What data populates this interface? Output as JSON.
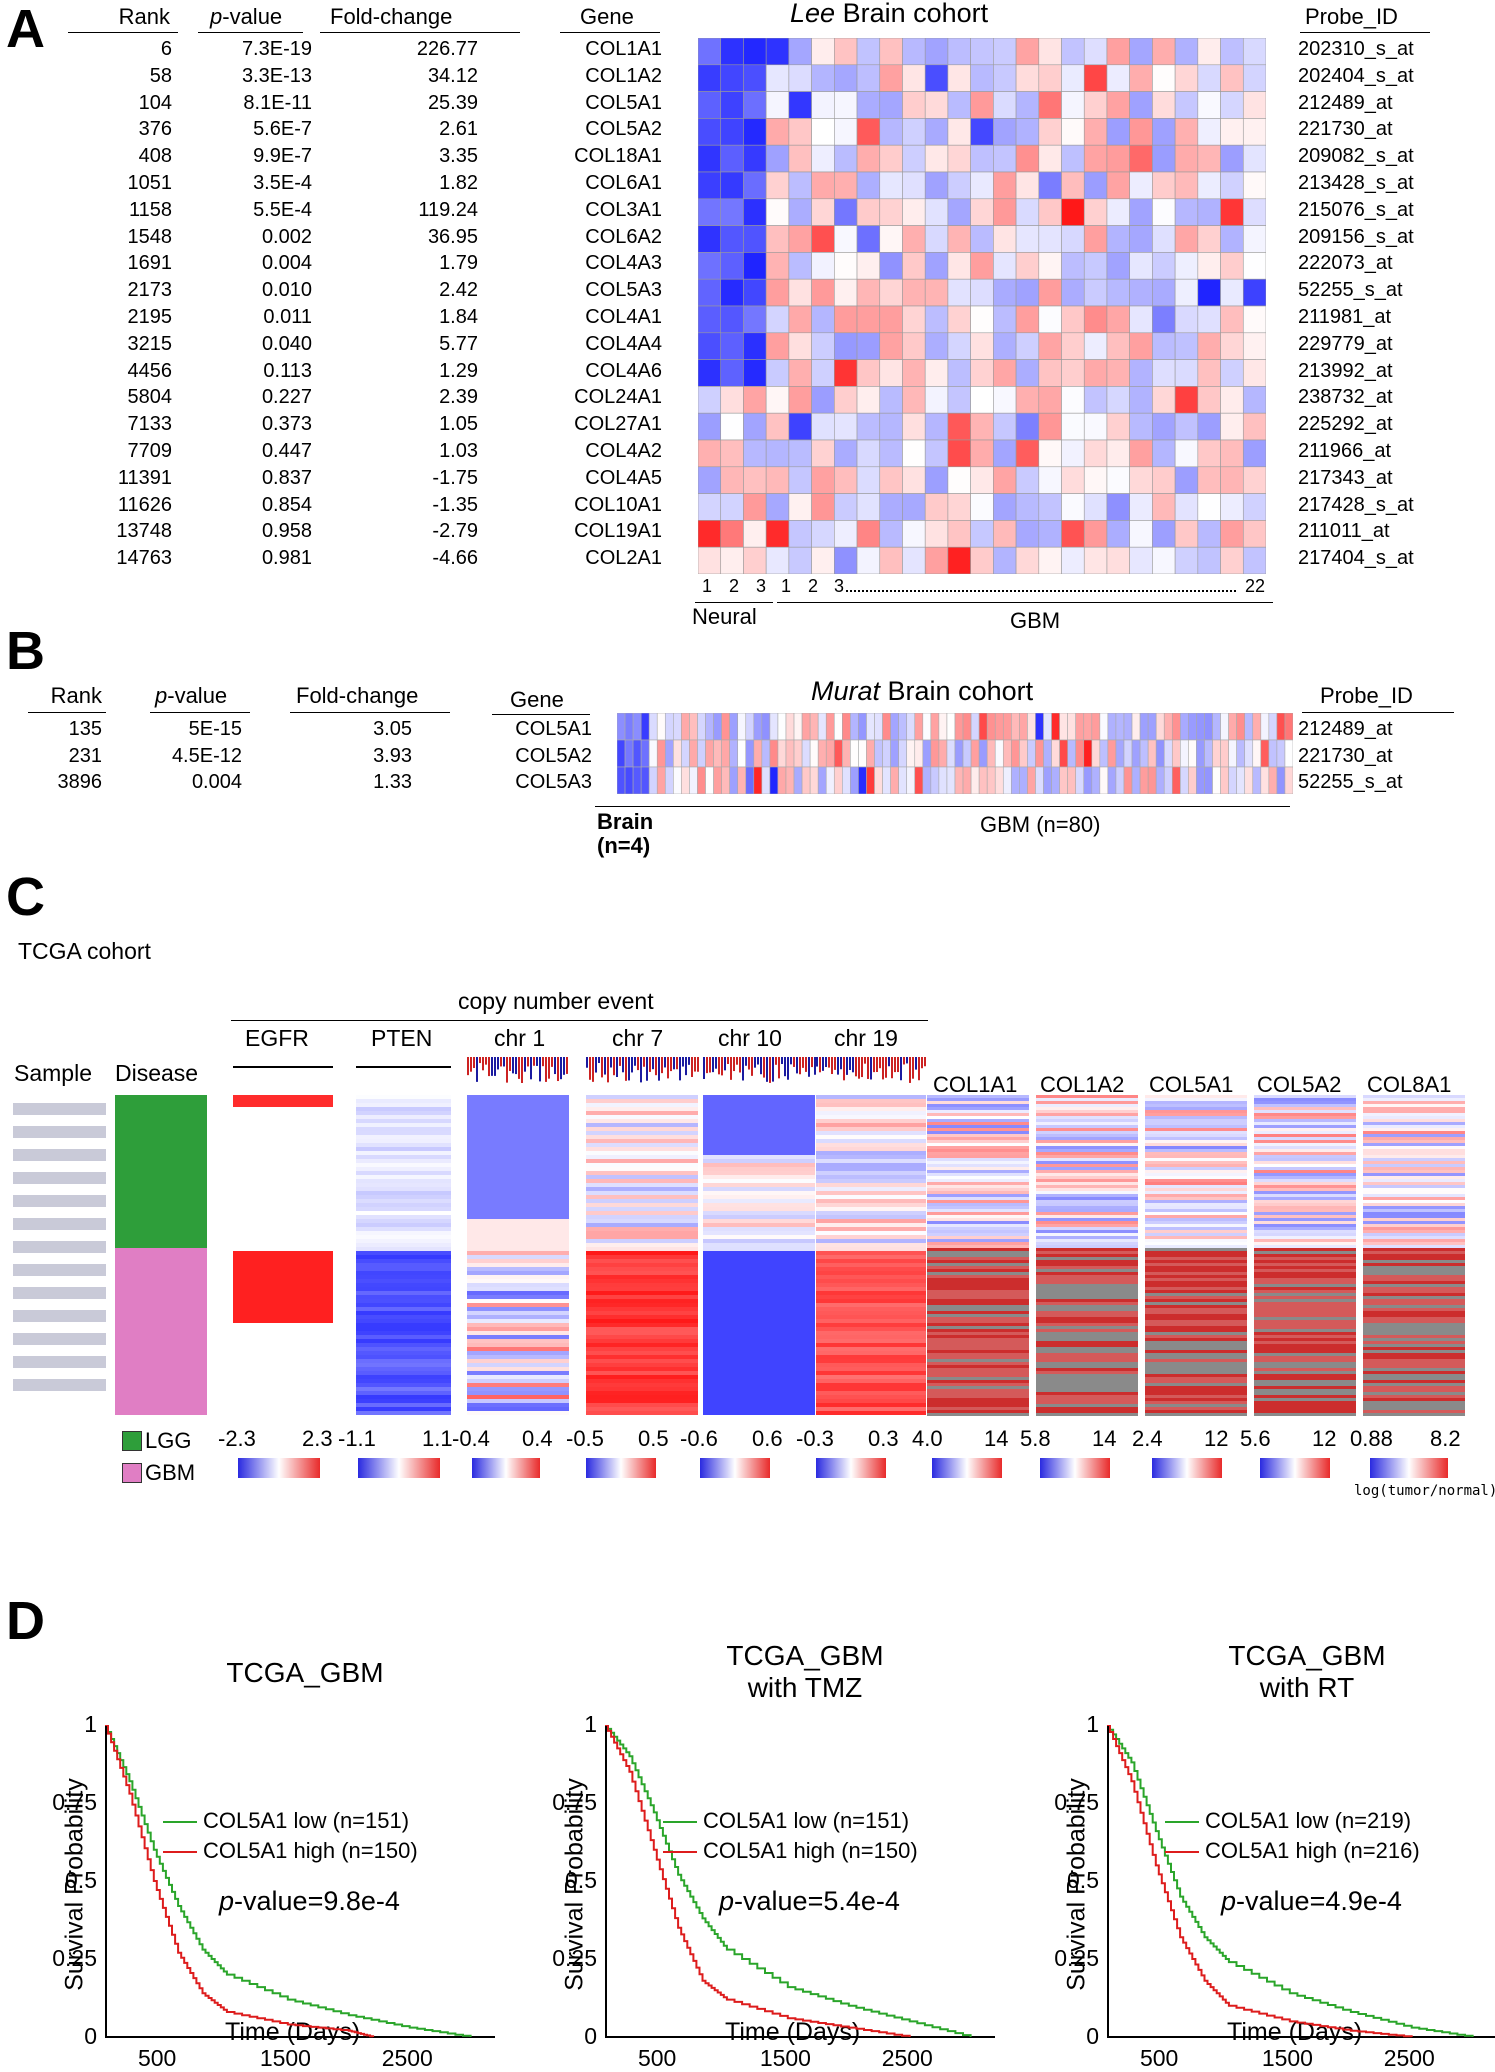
{
  "panels": {
    "a": "A",
    "b": "B",
    "c": "C",
    "d": "D"
  },
  "panelA": {
    "headers": {
      "rank": "Rank",
      "pvalue_prefix": "p",
      "pvalue_suffix": "-value",
      "fold": "Fold-change",
      "gene": "Gene",
      "probe": "Probe_ID"
    },
    "title_italic": "Lee",
    "title_rest": " Brain cohort",
    "rows": [
      {
        "rank": "6",
        "p": "7.3E-19",
        "fold": "226.77",
        "gene": "COL1A1",
        "probe": "202310_s_at"
      },
      {
        "rank": "58",
        "p": "3.3E-13",
        "fold": "34.12",
        "gene": "COL1A2",
        "probe": "202404_s_at"
      },
      {
        "rank": "104",
        "p": "8.1E-11",
        "fold": "25.39",
        "gene": "COL5A1",
        "probe": "212489_at"
      },
      {
        "rank": "376",
        "p": "5.6E-7",
        "fold": "2.61",
        "gene": "COL5A2",
        "probe": "221730_at"
      },
      {
        "rank": "408",
        "p": "9.9E-7",
        "fold": "3.35",
        "gene": "COL18A1",
        "probe": "209082_s_at"
      },
      {
        "rank": "1051",
        "p": "3.5E-4",
        "fold": "1.82",
        "gene": "COL6A1",
        "probe": "213428_s_at"
      },
      {
        "rank": "1158",
        "p": "5.5E-4",
        "fold": "119.24",
        "gene": "COL3A1",
        "probe": "215076_s_at"
      },
      {
        "rank": "1548",
        "p": "0.002",
        "fold": "36.95",
        "gene": "COL6A2",
        "probe": "209156_s_at"
      },
      {
        "rank": "1691",
        "p": "0.004",
        "fold": "1.79",
        "gene": "COL4A3",
        "probe": "222073_at"
      },
      {
        "rank": "2173",
        "p": "0.010",
        "fold": "2.42",
        "gene": "COL5A3",
        "probe": "52255_s_at"
      },
      {
        "rank": "2195",
        "p": "0.011",
        "fold": "1.84",
        "gene": "COL4A1",
        "probe": "211981_at"
      },
      {
        "rank": "3215",
        "p": "0.040",
        "fold": "5.77",
        "gene": "COL4A4",
        "probe": "229779_at"
      },
      {
        "rank": "4456",
        "p": "0.113",
        "fold": "1.29",
        "gene": "COL4A6",
        "probe": "213992_at"
      },
      {
        "rank": "5804",
        "p": "0.227",
        "fold": "2.39",
        "gene": "COL24A1",
        "probe": "238732_at"
      },
      {
        "rank": "7133",
        "p": "0.373",
        "fold": "1.05",
        "gene": "COL27A1",
        "probe": "225292_at"
      },
      {
        "rank": "7709",
        "p": "0.447",
        "fold": "1.03",
        "gene": "COL4A2",
        "probe": "211966_at"
      },
      {
        "rank": "11391",
        "p": "0.837",
        "fold": "-1.75",
        "gene": "COL4A5",
        "probe": "217343_at"
      },
      {
        "rank": "11626",
        "p": "0.854",
        "fold": "-1.35",
        "gene": "COL10A1",
        "probe": "217428_s_at"
      },
      {
        "rank": "13748",
        "p": "0.958",
        "fold": "-2.79",
        "gene": "COL19A1",
        "probe": "211011_at"
      },
      {
        "rank": "14763",
        "p": "0.981",
        "fold": "-4.66",
        "gene": "COL2A1",
        "probe": "217404_s_at"
      }
    ],
    "sample_numbers": [
      "1",
      "2",
      "3",
      "1",
      "2",
      "3",
      "22"
    ],
    "group_neural": "Neural",
    "group_gbm": "GBM"
  },
  "panelB": {
    "headers": {
      "rank": "Rank",
      "pvalue_prefix": "p",
      "pvalue_suffix": "-value",
      "fold": "Fold-change",
      "gene": "Gene",
      "probe": "Probe_ID"
    },
    "title_italic": "Murat",
    "title_rest": " Brain cohort",
    "rows": [
      {
        "rank": "135",
        "p": "5E-15",
        "fold": "3.05",
        "gene": "COL5A1",
        "probe": "212489_at"
      },
      {
        "rank": "231",
        "p": "4.5E-12",
        "fold": "3.93",
        "gene": "COL5A2",
        "probe": "221730_at"
      },
      {
        "rank": "3896",
        "p": "0.004",
        "fold": "1.33",
        "gene": "COL5A3",
        "probe": "52255_s_at"
      }
    ],
    "group_brain": "Brain",
    "group_brain_n": "(n=4)",
    "group_gbm": "GBM (n=80)"
  },
  "panelC": {
    "cohort": "TCGA cohort",
    "cnv_title": "copy number event",
    "col_sample": "Sample",
    "col_disease": "Disease",
    "tracks": [
      "EGFR",
      "PTEN",
      "chr 1",
      "chr 7",
      "chr 10",
      "chr 19"
    ],
    "genes": [
      "COL1A1",
      "COL1A2",
      "COL5A1",
      "COL5A2",
      "COL8A1"
    ],
    "scales": [
      {
        "min": "-2.3",
        "max": "2.3"
      },
      {
        "min": "-1.1",
        "max": "1.1"
      },
      {
        "min": "-0.4",
        "max": "0.4"
      },
      {
        "min": "-0.5",
        "max": "0.5"
      },
      {
        "min": "-0.6",
        "max": "0.6"
      },
      {
        "min": "-0.3",
        "max": "0.3"
      },
      {
        "min": "4.0",
        "max": "14"
      },
      {
        "min": "5.8",
        "max": "14"
      },
      {
        "min": "2.4",
        "max": "12"
      },
      {
        "min": "5.6",
        "max": "12"
      },
      {
        "min": "0.88",
        "max": "8.2"
      }
    ],
    "legend_lgg": "LGG",
    "legend_gbm": "GBM",
    "color_lgg": "#2e9e3a",
    "color_gbm": "#e07ec4",
    "log_note": "log(tumor/normal)"
  },
  "panelD": {
    "ylabel": "Survival Probability",
    "xlabel": "Time (Days)",
    "yticks": [
      "1",
      "0.75",
      "0.5",
      "0.25",
      "0"
    ],
    "xticks": [
      "500",
      "1500",
      "2500"
    ],
    "color_low": "#2aa52a",
    "color_high": "#dd1c1c",
    "plots": [
      {
        "title1": "TCGA_GBM",
        "title2": "",
        "low": "COL5A1 low (n=151)",
        "high": "COL5A1 high (n=150)",
        "pvalue": "-value=9.8e-4"
      },
      {
        "title1": "TCGA_GBM",
        "title2": "with TMZ",
        "low": "COL5A1 low (n=151)",
        "high": "COL5A1 high (n=150)",
        "pvalue": "-value=5.4e-4"
      },
      {
        "title1": "TCGA_GBM",
        "title2": "with RT",
        "low": "COL5A1 low (n=219)",
        "high": "COL5A1 high (n=216)",
        "pvalue": "-value=4.9e-4"
      }
    ],
    "pvalue_prefix": "p",
    "chart_data": [
      {
        "type": "line",
        "title": "TCGA_GBM",
        "xlabel": "Time (Days)",
        "ylabel": "Survival Probability",
        "xlim": [
          0,
          3200
        ],
        "ylim": [
          0,
          1
        ],
        "series": [
          {
            "name": "COL5A1 low (n=151)",
            "x": [
              0,
              200,
              400,
              600,
              800,
              1000,
              1500,
              2000,
              2500,
              3000
            ],
            "y": [
              1,
              0.82,
              0.6,
              0.42,
              0.28,
              0.2,
              0.12,
              0.07,
              0.03,
              0.0
            ]
          },
          {
            "name": "COL5A1 high (n=150)",
            "x": [
              0,
              200,
              400,
              600,
              800,
              1000,
              1500,
              2000,
              2200
            ],
            "y": [
              1,
              0.78,
              0.5,
              0.27,
              0.14,
              0.08,
              0.04,
              0.02,
              0.0
            ]
          }
        ]
      },
      {
        "type": "line",
        "title": "TCGA_GBM with TMZ",
        "xlabel": "Time (Days)",
        "ylabel": "Survival Probability",
        "xlim": [
          0,
          3200
        ],
        "ylim": [
          0,
          1
        ],
        "series": [
          {
            "name": "COL5A1 low (n=151)",
            "x": [
              0,
              200,
              400,
              600,
              800,
              1000,
              1500,
              2000,
              2500,
              3000
            ],
            "y": [
              1,
              0.9,
              0.72,
              0.52,
              0.38,
              0.28,
              0.16,
              0.1,
              0.05,
              0.0
            ]
          },
          {
            "name": "COL5A1 high (n=150)",
            "x": [
              0,
              200,
              400,
              600,
              800,
              1000,
              1500,
              2000,
              2500
            ],
            "y": [
              1,
              0.85,
              0.6,
              0.35,
              0.18,
              0.12,
              0.06,
              0.03,
              0.0
            ]
          }
        ]
      },
      {
        "type": "line",
        "title": "TCGA_GBM with RT",
        "xlabel": "Time (Days)",
        "ylabel": "Survival Probability",
        "xlim": [
          0,
          3200
        ],
        "ylim": [
          0,
          1
        ],
        "series": [
          {
            "name": "COL5A1 low (n=219)",
            "x": [
              0,
              200,
              400,
              600,
              800,
              1000,
              1500,
              2000,
              2500,
              3000
            ],
            "y": [
              1,
              0.88,
              0.66,
              0.45,
              0.32,
              0.24,
              0.14,
              0.08,
              0.03,
              0.0
            ]
          },
          {
            "name": "COL5A1 high (n=216)",
            "x": [
              0,
              200,
              400,
              600,
              800,
              1000,
              1500,
              2000,
              2500
            ],
            "y": [
              1,
              0.82,
              0.55,
              0.32,
              0.18,
              0.1,
              0.05,
              0.02,
              0.0
            ]
          }
        ]
      }
    ]
  }
}
